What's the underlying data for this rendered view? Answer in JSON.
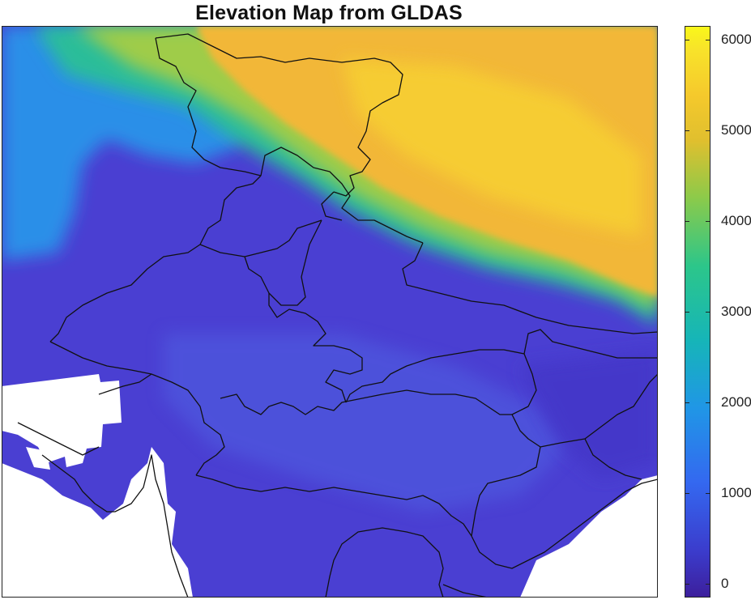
{
  "title": "Elevation Map from GLDAS",
  "colorbar": {
    "min": -150,
    "max": 6150,
    "ticks": [
      "0",
      "1000",
      "2000",
      "3000",
      "4000",
      "5000",
      "6000"
    ],
    "tick_values": [
      0,
      1000,
      2000,
      3000,
      4000,
      5000,
      6000
    ],
    "colormap": "parula"
  },
  "map": {
    "colors": {
      "lowland": "#4a3fd2",
      "plateau": "#4c55dc",
      "foothill": "#2a8fe8",
      "transition": "#2bbd9a",
      "green_band": "#9fcc48",
      "high": "#f2b737",
      "peak": "#f7d230",
      "no_data": "#ffffff",
      "borders": "#111111"
    }
  }
}
